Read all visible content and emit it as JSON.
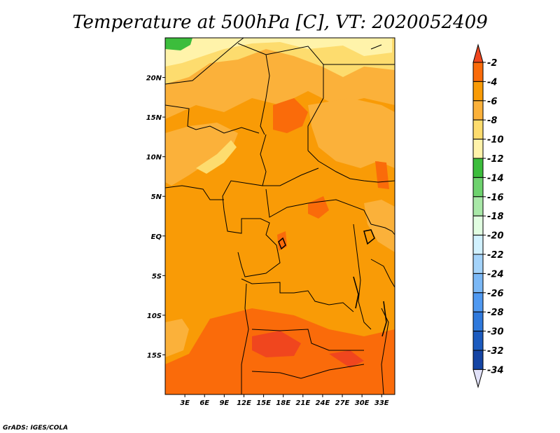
{
  "title": "Temperature at 500hPa [C], VT: 2020052409",
  "credit": "GrADS: IGES/COLA",
  "map": {
    "region": "Central Africa",
    "lat_range": [
      -20,
      25
    ],
    "lon_range": [
      0,
      35
    ],
    "lat_ticks": [
      {
        "lat": 20,
        "label": "20N"
      },
      {
        "lat": 15,
        "label": "15N"
      },
      {
        "lat": 10,
        "label": "10N"
      },
      {
        "lat": 5,
        "label": "5N"
      },
      {
        "lat": 0,
        "label": "EQ"
      },
      {
        "lat": -5,
        "label": "5S"
      },
      {
        "lat": -10,
        "label": "10S"
      },
      {
        "lat": -15,
        "label": "15S"
      }
    ],
    "lon_ticks": [
      {
        "lon": 3,
        "label": "3E"
      },
      {
        "lon": 6,
        "label": "6E"
      },
      {
        "lon": 9,
        "label": "9E"
      },
      {
        "lon": 12,
        "label": "12E"
      },
      {
        "lon": 15,
        "label": "15E"
      },
      {
        "lon": 18,
        "label": "18E"
      },
      {
        "lon": 21,
        "label": "21E"
      },
      {
        "lon": 24,
        "label": "24E"
      },
      {
        "lon": 27,
        "label": "27E"
      },
      {
        "lon": 30,
        "label": "30E"
      },
      {
        "lon": 33,
        "label": "33E"
      }
    ]
  },
  "colorbar": {
    "levels": [
      "-2",
      "-4",
      "-6",
      "-8",
      "-10",
      "-12",
      "-14",
      "-16",
      "-18",
      "-20",
      "-22",
      "-24",
      "-26",
      "-28",
      "-30",
      "-32",
      "-34"
    ],
    "colors": [
      "#f0461e",
      "#fa6b0a",
      "#f99b06",
      "#fbb13a",
      "#fddc6e",
      "#fff3aa",
      "#3cbd3c",
      "#6ed26e",
      "#a9e8a8",
      "#e1fde1",
      "#d1f1fe",
      "#a4d3fa",
      "#7bb8f6",
      "#5099f1",
      "#2f79dc",
      "#1c5bbf",
      "#1444a4",
      "#0a1e78",
      "#e1e1f8"
    ]
  },
  "palette": {
    "warm_m4_m2": "#fa6b0a",
    "m6_m4": "#f99b06",
    "m8_m6": "#fbb13a",
    "m10_m8": "#fddc6e",
    "m12_m10": "#fff3aa",
    "m14_m12": "#3cbd3c",
    "gt_m2": "#f0461e"
  }
}
